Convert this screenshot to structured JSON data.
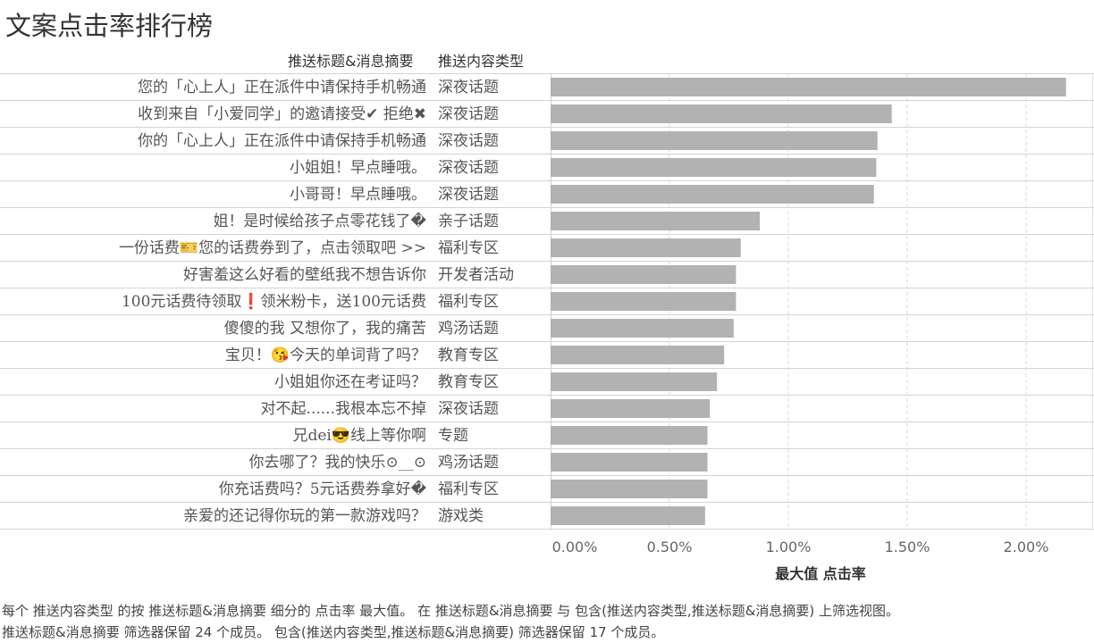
{
  "title": "文案点击率排行榜",
  "column_headers": {
    "title_col": "推送标题&消息摘要",
    "type_col": "推送内容类型"
  },
  "footer": {
    "line1": "每个 推送内容类型 的按 推送标题&消息摘要 细分的 点击率 最大值。 在 推送标题&消息摘要 与 包含(推送内容类型,推送标题&消息摘要) 上筛选视图。",
    "line2": "推送标题&消息摘要 筛选器保留 24 个成员。 包含(推送内容类型,推送标题&消息摘要) 筛选器保留 17 个成员。"
  },
  "colors": {
    "bar": "#b2b2b2",
    "grid": "#d9d9d9",
    "row_border": "#d4d4d4",
    "text": "#333333"
  },
  "chart_data": {
    "type": "bar",
    "orientation": "horizontal",
    "title": "文案点击率排行榜",
    "xlabel": "最大值 点击率",
    "xlim": [
      0,
      0.0225
    ],
    "xticks": [
      0,
      0.005,
      0.01,
      0.015,
      0.02
    ],
    "xtick_labels": [
      "0.00%",
      "0.50%",
      "1.00%",
      "1.50%",
      "2.00%"
    ],
    "grid": true,
    "rows": [
      {
        "title": "您的「心上人」正在派件中请保持手机畅通",
        "type": "深夜话题",
        "value": 0.02168
      },
      {
        "title": "收到来自「小爱同学」的邀请接受✔ 拒绝✖",
        "type": "深夜话题",
        "value": 0.01435
      },
      {
        "title": "你的「心上人」正在派件中请保持手机畅通",
        "type": "深夜话题",
        "value": 0.01375
      },
      {
        "title": "小姐姐！早点睡哦。",
        "type": "深夜话题",
        "value": 0.0137
      },
      {
        "title": "小哥哥！早点睡哦。",
        "type": "深夜话题",
        "value": 0.0136
      },
      {
        "title": "姐！是时候给孩子点零花钱了�",
        "type": "亲子话题",
        "value": 0.0088
      },
      {
        "title": "一份话费🎫您的话费券到了，点击领取吧 >>",
        "type": "福利专区",
        "value": 0.008
      },
      {
        "title": "好害羞这么好看的壁纸我不想告诉你",
        "type": "开发者活动",
        "value": 0.0078
      },
      {
        "title": "100元话费待领取❗领米粉卡，送100元话费",
        "type": "福利专区",
        "value": 0.0078
      },
      {
        "title": "傻傻的我 又想你了，我的痛苦",
        "type": "鸡汤话题",
        "value": 0.0077
      },
      {
        "title": "宝贝！😘今天的单词背了吗？",
        "type": "教育专区",
        "value": 0.0073
      },
      {
        "title": "小姐姐你还在考证吗？",
        "type": "教育专区",
        "value": 0.007
      },
      {
        "title": "对不起......我根本忘不掉",
        "type": "深夜话题",
        "value": 0.0067
      },
      {
        "title": "兄dei😎线上等你啊",
        "type": "专题",
        "value": 0.0066
      },
      {
        "title": "你去哪了？我的快乐⊙__⊙",
        "type": "鸡汤话题",
        "value": 0.0066
      },
      {
        "title": "你充话费吗？5元话费券拿好�",
        "type": "福利专区",
        "value": 0.0066
      },
      {
        "title": "亲爱的还记得你玩的第一款游戏吗？",
        "type": "游戏类",
        "value": 0.0065
      }
    ]
  }
}
